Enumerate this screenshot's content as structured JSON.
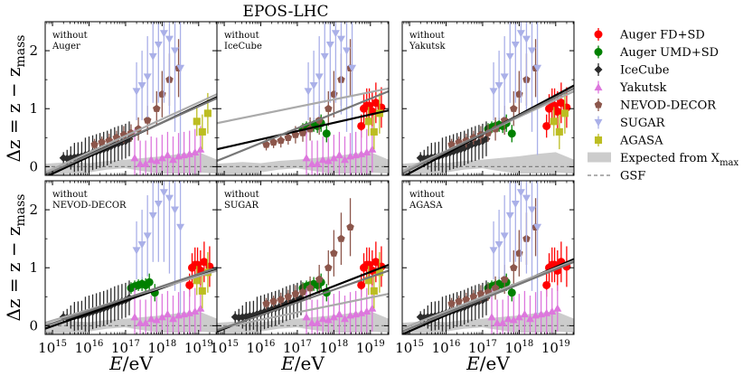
{
  "chart_data": {
    "type": "scatter",
    "title": "EPOS-LHC",
    "xlabel": "E/eV",
    "ylabel": "Δz = z − z_mass",
    "xscale": "log",
    "xlim_log10": [
      14.8,
      19.5
    ],
    "ylim": [
      -0.15,
      2.5
    ],
    "xticks": [
      {
        "value": 15,
        "label": "10^15"
      },
      {
        "value": 16,
        "label": "10^16"
      },
      {
        "value": 17,
        "label": "10^17"
      },
      {
        "value": 18,
        "label": "10^18"
      },
      {
        "value": 19,
        "label": "10^19"
      }
    ],
    "yticks": [
      0,
      1,
      2
    ],
    "legend": [
      {
        "name": "Auger FD+SD",
        "color": "#ff0000",
        "marker": "circle"
      },
      {
        "name": "Auger UMD+SD",
        "color": "#008000",
        "marker": "circle"
      },
      {
        "name": "IceCube",
        "color": "#2b2b2b",
        "marker": "diamond"
      },
      {
        "name": "Yakutsk",
        "color": "#dd77dd",
        "marker": "triangle-up"
      },
      {
        "name": "NEVOD-DECOR",
        "color": "#8c564b",
        "marker": "pentagon"
      },
      {
        "name": "SUGAR",
        "color": "#aab0e8",
        "marker": "triangle-down"
      },
      {
        "name": "AGASA",
        "color": "#bcbd22",
        "marker": "square"
      },
      {
        "name": "Expected from X_max",
        "color": "#cccccc",
        "marker": "band"
      },
      {
        "name": "GSF",
        "color": "#808080",
        "marker": "dashed"
      }
    ],
    "legend_texts": {
      "auger_fd": "Auger FD+SD",
      "auger_umd": "Auger UMD+SD",
      "icecube": "IceCube",
      "yakutsk": "Yakutsk",
      "nevod": "NEVOD-DECOR",
      "sugar": "SUGAR",
      "agasa": "AGASA",
      "expected": "Expected from X",
      "expected_sub": "max",
      "gsf": "GSF"
    },
    "axis_texts": {
      "ylabel_main": "Δz = z − z",
      "ylabel_sub": "mass",
      "xlabel_var": "E",
      "xlabel_unit": "/eV",
      "tick_base": "10",
      "tick_exps": [
        "15",
        "16",
        "17",
        "18",
        "19"
      ],
      "yticks_text": [
        "0",
        "1",
        "2"
      ]
    },
    "band": {
      "x": [
        14.8,
        15.5,
        16.0,
        16.5,
        17.0,
        17.5,
        18.0,
        18.5,
        19.0,
        19.5
      ],
      "lo": [
        -0.22,
        -0.2,
        -0.1,
        -0.05,
        -0.03,
        -0.08,
        -0.12,
        -0.12,
        -0.1,
        -0.12
      ],
      "hi": [
        0.05,
        0.08,
        0.06,
        0.1,
        0.12,
        0.15,
        0.18,
        0.22,
        0.25,
        0.12
      ]
    },
    "gsf": {
      "x": [
        14.8,
        19.5
      ],
      "y": [
        0.0,
        0.0
      ]
    },
    "series": [
      {
        "name": "Auger FD+SD",
        "color": "#ff0000",
        "marker": "circle",
        "x": [
          18.75,
          18.82,
          18.9,
          18.97,
          19.05,
          19.15,
          19.3
        ],
        "y": [
          0.7,
          1.0,
          1.05,
          1.05,
          0.95,
          1.1,
          1.02
        ],
        "err": [
          0.2,
          0.25,
          0.3,
          0.3,
          0.35,
          0.35,
          0.35
        ]
      },
      {
        "name": "Auger UMD+SD",
        "color": "#008000",
        "marker": "circle",
        "x": [
          17.15,
          17.25,
          17.35,
          17.45,
          17.55,
          17.65,
          17.8
        ],
        "y": [
          0.65,
          0.68,
          0.7,
          0.72,
          0.7,
          0.75,
          0.57
        ],
        "err": [
          0.1,
          0.1,
          0.1,
          0.12,
          0.12,
          0.15,
          0.15
        ]
      },
      {
        "name": "IceCube",
        "color": "#2b2b2b",
        "marker": "diamond",
        "x": [
          15.3,
          15.4,
          15.5,
          15.6,
          15.7,
          15.8,
          15.9,
          16.0,
          16.1,
          16.2,
          16.3,
          16.4,
          16.5,
          16.6,
          16.7,
          16.8,
          16.9,
          17.0,
          17.1
        ],
        "y": [
          0.15,
          0.14,
          0.15,
          0.16,
          0.17,
          0.18,
          0.2,
          0.22,
          0.24,
          0.26,
          0.28,
          0.3,
          0.32,
          0.35,
          0.38,
          0.4,
          0.42,
          0.44,
          0.48
        ],
        "err": [
          0.1,
          0.15,
          0.2,
          0.25,
          0.25,
          0.25,
          0.3,
          0.3,
          0.3,
          0.3,
          0.3,
          0.3,
          0.3,
          0.3,
          0.3,
          0.3,
          0.3,
          0.3,
          0.3
        ]
      },
      {
        "name": "Yakutsk",
        "color": "#dd77dd",
        "marker": "triangle-up",
        "x": [
          17.25,
          17.4,
          17.55,
          17.7,
          17.85,
          18.0,
          18.15,
          18.3,
          18.45,
          18.6,
          18.75,
          18.9,
          19.05
        ],
        "y": [
          0.15,
          0.05,
          0.05,
          0.12,
          0.1,
          0.15,
          0.2,
          0.12,
          0.18,
          0.2,
          0.22,
          0.25,
          0.3
        ],
        "err": [
          0.5,
          0.4,
          0.4,
          0.4,
          0.4,
          0.4,
          0.4,
          0.4,
          0.4,
          0.4,
          0.4,
          0.4,
          0.4
        ]
      },
      {
        "name": "NEVOD-DECOR",
        "color": "#8c564b",
        "marker": "pentagon",
        "x": [
          16.15,
          16.35,
          16.55,
          16.75,
          16.95,
          17.15,
          17.35,
          17.6,
          17.85,
          18.0,
          18.2,
          18.45
        ],
        "y": [
          0.38,
          0.42,
          0.45,
          0.5,
          0.55,
          0.58,
          0.65,
          0.8,
          1.0,
          1.25,
          1.5,
          1.7
        ],
        "err": [
          0.1,
          0.1,
          0.12,
          0.12,
          0.15,
          0.15,
          0.2,
          0.25,
          0.3,
          0.4,
          0.45,
          0.5
        ]
      },
      {
        "name": "SUGAR",
        "color": "#aab0e8",
        "marker": "triangle-down",
        "x": [
          17.3,
          17.45,
          17.6,
          17.75,
          17.9,
          18.05,
          18.2,
          18.35,
          18.5
        ],
        "y": [
          1.3,
          1.4,
          1.55,
          1.9,
          2.1,
          2.3,
          2.2,
          2.0,
          1.7
        ],
        "err": [
          0.5,
          0.6,
          0.7,
          0.8,
          1.0,
          1.2,
          1.3,
          1.4,
          1.5
        ]
      },
      {
        "name": "AGASA",
        "color": "#bcbd22",
        "marker": "square",
        "x": [
          18.95,
          19.1,
          19.25
        ],
        "y": [
          0.78,
          0.6,
          0.92
        ],
        "err": [
          0.25,
          0.3,
          0.35
        ]
      }
    ],
    "panels": [
      {
        "label": "without Auger",
        "line1": "without",
        "line2": "Auger",
        "exclude": [
          "Auger FD+SD",
          "Auger UMD+SD"
        ],
        "fits": [
          {
            "color": "#000000",
            "x": [
              14.8,
              19.5
            ],
            "y": [
              -0.18,
              1.2
            ]
          },
          {
            "color": "#aaaaaa",
            "x": [
              14.8,
              19.5
            ],
            "y": [
              -0.1,
              1.25
            ]
          },
          {
            "color": "#777777",
            "x": [
              14.8,
              19.5
            ],
            "y": [
              -0.14,
              1.18
            ]
          }
        ]
      },
      {
        "label": "without IceCube",
        "line1": "without",
        "line2": "IceCube",
        "exclude": [
          "IceCube"
        ],
        "fits": [
          {
            "color": "#000000",
            "x": [
              14.8,
              19.5
            ],
            "y": [
              0.3,
              0.97
            ]
          },
          {
            "color": "#aaaaaa",
            "x": [
              14.8,
              19.5
            ],
            "y": [
              0.75,
              1.35
            ]
          },
          {
            "color": "#777777",
            "x": [
              14.8,
              19.5
            ],
            "y": [
              0.1,
              1.3
            ]
          }
        ]
      },
      {
        "label": "without Yakutsk",
        "line1": "without",
        "line2": "Yakutsk",
        "exclude": [
          "Yakutsk"
        ],
        "fits": [
          {
            "color": "#000000",
            "x": [
              14.8,
              19.5
            ],
            "y": [
              -0.18,
              1.4
            ]
          },
          {
            "color": "#aaaaaa",
            "x": [
              14.8,
              19.5
            ],
            "y": [
              -0.08,
              1.3
            ]
          },
          {
            "color": "#777777",
            "x": [
              14.8,
              19.5
            ],
            "y": [
              -0.12,
              1.35
            ]
          }
        ]
      },
      {
        "label": "without NEVOD-DECOR",
        "line1": "without",
        "line2": "NEVOD-DECOR",
        "exclude": [
          "NEVOD-DECOR"
        ],
        "fits": [
          {
            "color": "#000000",
            "x": [
              14.8,
              19.5
            ],
            "y": [
              -0.05,
              0.98
            ]
          },
          {
            "color": "#aaaaaa",
            "x": [
              14.8,
              19.5
            ],
            "y": [
              0.05,
              0.95
            ]
          },
          {
            "color": "#777777",
            "x": [
              14.8,
              19.5
            ],
            "y": [
              0.0,
              1.0
            ]
          }
        ]
      },
      {
        "label": "without SUGAR",
        "line1": "without",
        "line2": "SUGAR",
        "exclude": [
          "SUGAR"
        ],
        "fits": [
          {
            "color": "#000000",
            "x": [
              14.8,
              19.5
            ],
            "y": [
              -0.1,
              1.05
            ]
          },
          {
            "color": "#aaaaaa",
            "x": [
              14.8,
              19.5
            ],
            "y": [
              -0.05,
              0.55
            ]
          },
          {
            "color": "#777777",
            "x": [
              14.8,
              19.5
            ],
            "y": [
              -0.08,
              0.95
            ]
          }
        ]
      },
      {
        "label": "without AGASA",
        "line1": "without",
        "line2": "AGASA",
        "exclude": [
          "AGASA"
        ],
        "fits": [
          {
            "color": "#000000",
            "x": [
              14.8,
              19.5
            ],
            "y": [
              -0.15,
              1.15
            ]
          },
          {
            "color": "#aaaaaa",
            "x": [
              14.8,
              19.5
            ],
            "y": [
              -0.05,
              1.12
            ]
          },
          {
            "color": "#777777",
            "x": [
              14.8,
              19.5
            ],
            "y": [
              -0.1,
              1.1
            ]
          }
        ]
      }
    ]
  }
}
